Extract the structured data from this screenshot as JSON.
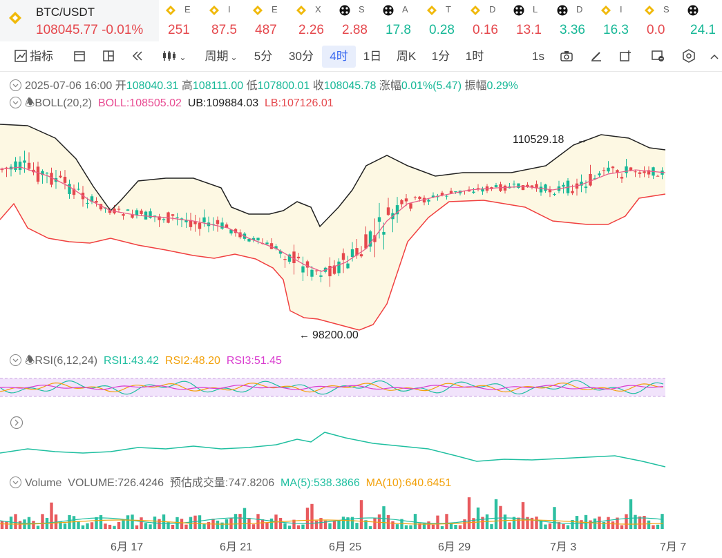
{
  "ticker": {
    "main": {
      "symbol": "BTC/USDT",
      "price": "108045.77",
      "change": "-0.01%"
    },
    "items": [
      {
        "name": "E",
        "value": "251",
        "color": "dn",
        "icon": "bnb-icon"
      },
      {
        "name": "I",
        "value": "87.5",
        "color": "dn",
        "icon": "bnb-icon"
      },
      {
        "name": "E",
        "value": "487",
        "color": "dn",
        "icon": "bnb-icon"
      },
      {
        "name": "X",
        "value": "2.26",
        "color": "dn",
        "icon": "bnb-icon"
      },
      {
        "name": "S",
        "value": "2.88",
        "color": "dn",
        "icon": "chain-icon"
      },
      {
        "name": "A",
        "value": "17.8",
        "color": "up",
        "icon": "chain-icon"
      },
      {
        "name": "T",
        "value": "0.28",
        "color": "up",
        "icon": "bnb-icon"
      },
      {
        "name": "D",
        "value": "0.16",
        "color": "dn",
        "icon": "bnb-icon"
      },
      {
        "name": "L",
        "value": "13.1",
        "color": "dn",
        "icon": "chain-icon"
      },
      {
        "name": "D",
        "value": "3.36",
        "color": "up",
        "icon": "chain-icon"
      },
      {
        "name": "I",
        "value": "16.3",
        "color": "up",
        "icon": "bnb-icon"
      },
      {
        "name": "S",
        "value": "0.0",
        "color": "dn",
        "icon": "bnb-icon"
      },
      {
        "name": "",
        "value": "24.1",
        "color": "up",
        "icon": "chain-icon"
      }
    ]
  },
  "toolbar": {
    "indicator": "指标",
    "period": "周期",
    "intervals": [
      "5分",
      "30分",
      "4时",
      "1日",
      "周K",
      "1分",
      "1时"
    ],
    "active_interval": "4时",
    "right": "1s"
  },
  "info": {
    "date": "2025-07-06 16:00",
    "open_label": "开",
    "open": "108040.31",
    "high_label": "高",
    "high": "108111.00",
    "low_label": "低",
    "low": "107800.01",
    "close_label": "收",
    "close": "108045.78",
    "chg_label": "涨幅",
    "chg": "0.01%(5.47)",
    "amp_label": "振幅",
    "amp": "0.29%"
  },
  "boll": {
    "label": "BOLL(20,2)",
    "boll": "BOLL:108505.02",
    "ub": "UB:109884.03",
    "lb": "LB:107126.01"
  },
  "annotations": {
    "high_mark": "110529.18",
    "low_mark": "98200.00"
  },
  "rsi": {
    "label": "RSI(6,12,24)",
    "rsi1": "RSI1:43.42",
    "rsi2": "RSI2:48.20",
    "rsi3": "RSI3:51.45"
  },
  "volume": {
    "label": "Volume",
    "volume": "VOLUME:726.4246",
    "est": "预估成交量:747.8206",
    "ma5": "MA(5):538.3866",
    "ma10": "MA(10):640.6451"
  },
  "x_axis": [
    "6月 17",
    "6月 21",
    "6月 25",
    "6月 29",
    "7月 3",
    "7月 7"
  ],
  "colors": {
    "up": "#17b897",
    "down": "#e5484d",
    "boll_mid": "#e85d8a",
    "ub": "#222222",
    "lb": "#f04040",
    "band": "#fdf8e3",
    "rsi_band": "#f1e3fb"
  }
}
